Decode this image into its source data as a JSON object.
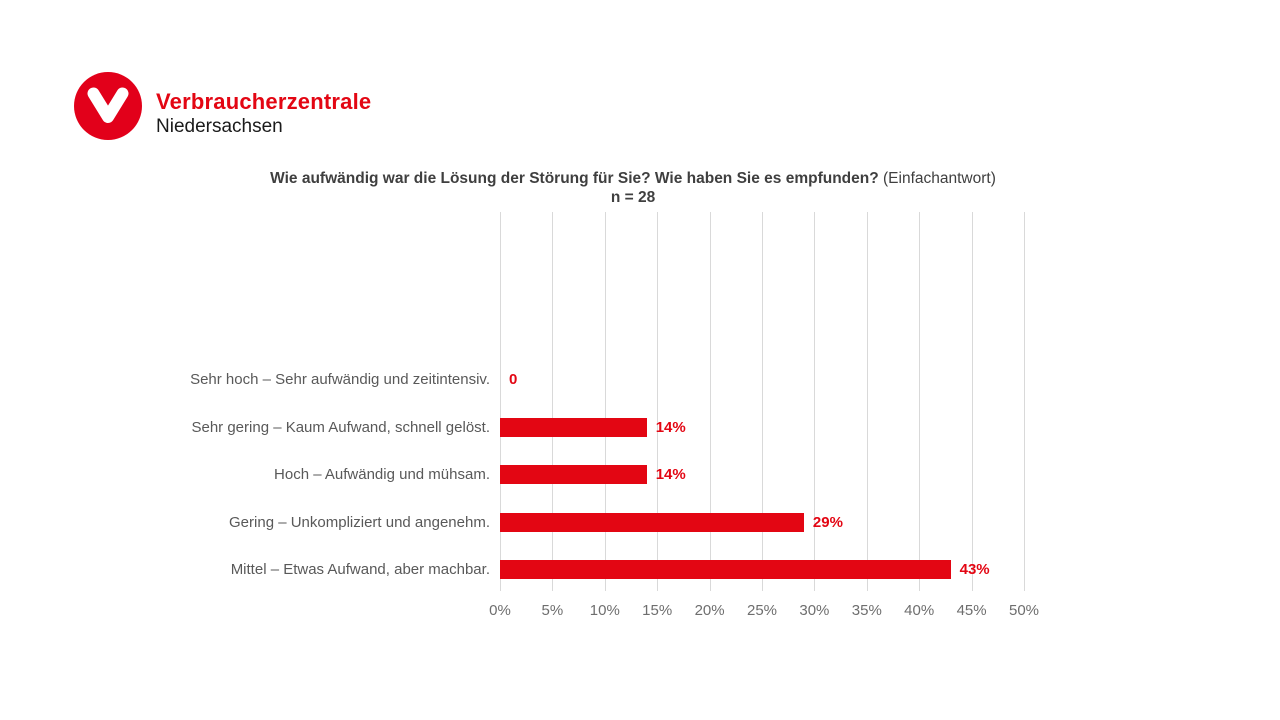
{
  "logo": {
    "brand": "Verbraucherzentrale",
    "region": "Niedersachsen",
    "brand_color": "#e30613",
    "mark_color": "#e2001a"
  },
  "chart": {
    "title_bold": "Wie aufwändig war die Lösung der Störung für Sie? Wie haben Sie es empfunden?",
    "title_suffix": " (Einfachantwort)",
    "n_label": "n = 28"
  },
  "chart_data": {
    "type": "bar",
    "orientation": "horizontal",
    "title": "Wie aufwändig war die Lösung der Störung für Sie? Wie haben Sie es empfunden? (Einfachantwort)",
    "subtitle": "n = 28",
    "categories": [
      "Sehr hoch – Sehr aufwändig und zeitintensiv.",
      "Sehr gering – Kaum Aufwand, schnell gelöst.",
      "Hoch – Aufwändig und mühsam.",
      "Gering – Unkompliziert und angenehm.",
      "Mittel – Etwas Aufwand, aber machbar."
    ],
    "values": [
      0,
      14,
      14,
      29,
      43
    ],
    "value_labels": [
      "0",
      "14%",
      "14%",
      "29%",
      "43%"
    ],
    "x_ticks": [
      "0%",
      "5%",
      "10%",
      "15%",
      "20%",
      "25%",
      "30%",
      "35%",
      "40%",
      "45%",
      "50%"
    ],
    "xlim": [
      0,
      50
    ],
    "grid": true,
    "legend": "none",
    "bar_color": "#e30613",
    "value_label_color": "#e30613",
    "gridline_color": "#d9d9d9",
    "category_label_color": "#595959",
    "tick_label_color": "#6e6e6e"
  }
}
